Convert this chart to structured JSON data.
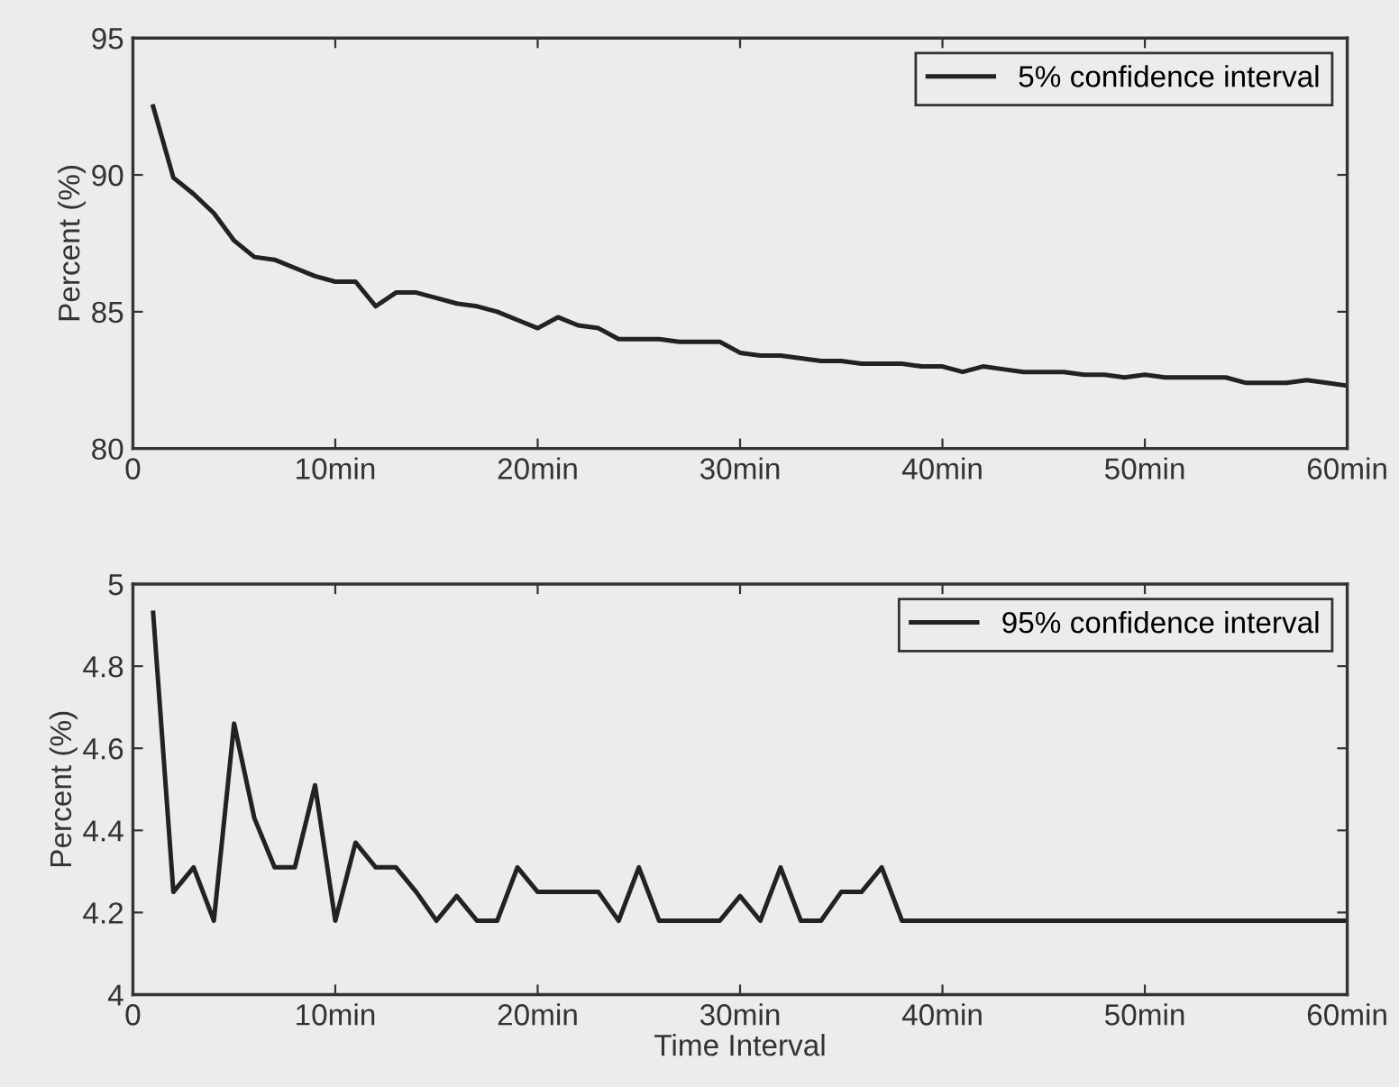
{
  "chart_data": [
    {
      "type": "line",
      "ylabel": "Percent (%)",
      "x": [
        1,
        2,
        3,
        4,
        5,
        6,
        7,
        8,
        9,
        10,
        11,
        12,
        13,
        14,
        15,
        16,
        17,
        18,
        19,
        20,
        21,
        22,
        23,
        24,
        25,
        26,
        27,
        28,
        29,
        30,
        31,
        32,
        33,
        34,
        35,
        36,
        37,
        38,
        39,
        40,
        41,
        42,
        43,
        44,
        45,
        46,
        47,
        48,
        49,
        50,
        51,
        52,
        53,
        54,
        55,
        56,
        57,
        58,
        59,
        60
      ],
      "series": [
        {
          "name": "5% confidence interval",
          "color": "#222222",
          "values": [
            92.5,
            89.9,
            89.3,
            88.6,
            87.6,
            87.0,
            86.9,
            86.6,
            86.3,
            86.1,
            86.1,
            85.2,
            85.7,
            85.7,
            85.5,
            85.3,
            85.2,
            85.0,
            84.7,
            84.4,
            84.8,
            84.5,
            84.4,
            84.0,
            84.0,
            84.0,
            83.9,
            83.9,
            83.9,
            83.5,
            83.4,
            83.4,
            83.3,
            83.2,
            83.2,
            83.1,
            83.1,
            83.1,
            83.0,
            83.0,
            82.8,
            83.0,
            82.9,
            82.8,
            82.8,
            82.8,
            82.7,
            82.7,
            82.6,
            82.7,
            82.6,
            82.6,
            82.6,
            82.6,
            82.4,
            82.4,
            82.4,
            82.5,
            82.4,
            82.3
          ]
        }
      ],
      "xlim": [
        0,
        60
      ],
      "xticks": [
        0,
        {
          "value": 10,
          "label": "10min"
        },
        {
          "value": 20,
          "label": "20min"
        },
        {
          "value": 30,
          "label": "30min"
        },
        {
          "value": 40,
          "label": "40min"
        },
        {
          "value": 50,
          "label": "50min"
        },
        {
          "value": 60,
          "label": "60min"
        }
      ],
      "ylim": [
        80,
        95
      ],
      "yticks": [
        80,
        85,
        90,
        95
      ],
      "grid": false,
      "legend": "top right"
    },
    {
      "type": "line",
      "ylabel": "Percent (%)",
      "xlabel": "Time Interval",
      "x": [
        1,
        2,
        3,
        4,
        5,
        6,
        7,
        8,
        9,
        10,
        11,
        12,
        13,
        14,
        15,
        16,
        17,
        18,
        19,
        20,
        21,
        22,
        23,
        24,
        25,
        26,
        27,
        28,
        29,
        30,
        31,
        32,
        33,
        34,
        35,
        36,
        37,
        38,
        39,
        40,
        41,
        42,
        43,
        44,
        45,
        46,
        47,
        48,
        49,
        50,
        51,
        52,
        53,
        54,
        55,
        56,
        57,
        58,
        59,
        60
      ],
      "series": [
        {
          "name": "95% confidence interval",
          "color": "#222222",
          "values": [
            4.93,
            4.25,
            4.31,
            4.18,
            4.66,
            4.43,
            4.31,
            4.31,
            4.51,
            4.18,
            4.37,
            4.31,
            4.31,
            4.25,
            4.18,
            4.24,
            4.18,
            4.18,
            4.31,
            4.25,
            4.25,
            4.25,
            4.25,
            4.18,
            4.31,
            4.18,
            4.18,
            4.18,
            4.18,
            4.24,
            4.18,
            4.31,
            4.18,
            4.18,
            4.25,
            4.25,
            4.31,
            4.18,
            4.18,
            4.18,
            4.18,
            4.18,
            4.18,
            4.18,
            4.18,
            4.18,
            4.18,
            4.18,
            4.18,
            4.18,
            4.18,
            4.18,
            4.18,
            4.18,
            4.18,
            4.18,
            4.18,
            4.18,
            4.18,
            4.18
          ]
        }
      ],
      "xlim": [
        0,
        60
      ],
      "xticks": [
        0,
        {
          "value": 10,
          "label": "10min"
        },
        {
          "value": 20,
          "label": "20min"
        },
        {
          "value": 30,
          "label": "30min"
        },
        {
          "value": 40,
          "label": "40min"
        },
        {
          "value": 50,
          "label": "50min"
        },
        {
          "value": 60,
          "label": "60min"
        }
      ],
      "ylim": [
        4,
        5
      ],
      "yticks": [
        4,
        4.2,
        4.4,
        4.6,
        4.8,
        5
      ],
      "grid": false,
      "legend": "top right"
    }
  ]
}
